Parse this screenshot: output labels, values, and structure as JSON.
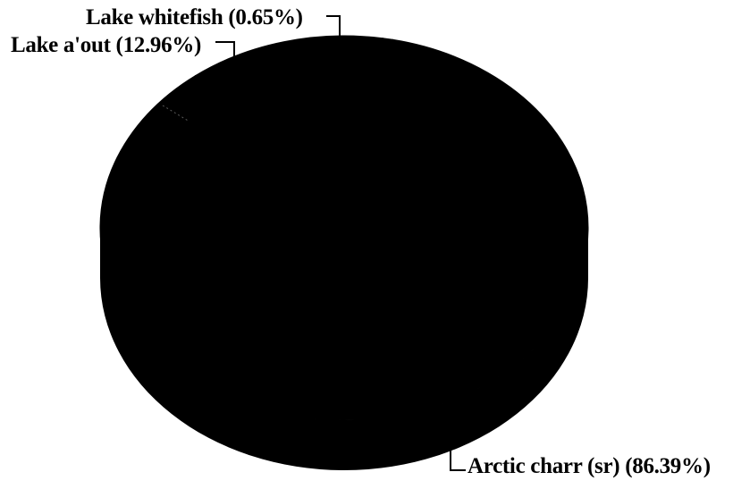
{
  "chart_data": {
    "type": "pie",
    "title": "",
    "slices": [
      {
        "label": "Arctic charr (sr)",
        "value": 86.39,
        "display": "Arctic charr (sr) (86.39%)"
      },
      {
        "label": "Lake trout",
        "value": 12.96,
        "display": "Lake a'out (12.96%)"
      },
      {
        "label": "Lake whitefish",
        "value": 0.65,
        "display": "Lake whitefish (0.65%)"
      }
    ],
    "style": {
      "slice_color": "#000000",
      "label_color": "#000000",
      "background": "#ffffff",
      "three_d": true
    }
  }
}
